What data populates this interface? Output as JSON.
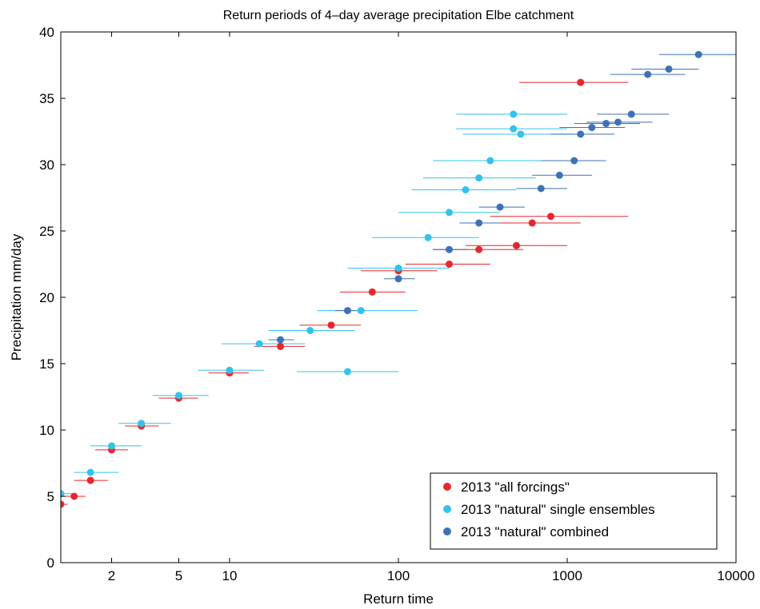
{
  "chart_data": {
    "type": "scatter",
    "title": "Return periods of 4–day average precipitation Elbe catchment",
    "xlabel": "Return time",
    "ylabel": "Precipitation mm/day",
    "xscale": "log",
    "xlim": [
      1,
      10000
    ],
    "ylim": [
      0,
      40
    ],
    "x_ticks": [
      2,
      5,
      10,
      100,
      1000,
      10000
    ],
    "x_tick_labels": [
      "2",
      "5",
      "10",
      "100",
      "1000",
      "10000"
    ],
    "y_ticks": [
      0,
      5,
      10,
      15,
      20,
      25,
      30,
      35,
      40
    ],
    "y_tick_labels": [
      "0",
      "5",
      "10",
      "15",
      "20",
      "25",
      "30",
      "35",
      "40"
    ],
    "grid": false,
    "legend_position": "bottom-right",
    "error_bars": "horizontal",
    "series": [
      {
        "name": "2013 \"all forcings\"",
        "color": "#e8262d",
        "points": [
          {
            "x": 1.0,
            "y": 4.4,
            "lo": 0.9,
            "hi": 1.1
          },
          {
            "x": 1.2,
            "y": 5.0,
            "lo": 1.0,
            "hi": 1.4
          },
          {
            "x": 1.5,
            "y": 6.2,
            "lo": 1.2,
            "hi": 1.9
          },
          {
            "x": 2.0,
            "y": 8.5,
            "lo": 1.6,
            "hi": 2.5
          },
          {
            "x": 3.0,
            "y": 10.3,
            "lo": 2.4,
            "hi": 3.8
          },
          {
            "x": 5.0,
            "y": 12.4,
            "lo": 3.8,
            "hi": 6.5
          },
          {
            "x": 10,
            "y": 14.3,
            "lo": 7.5,
            "hi": 13
          },
          {
            "x": 20,
            "y": 16.3,
            "lo": 14,
            "hi": 28
          },
          {
            "x": 40,
            "y": 17.9,
            "lo": 26,
            "hi": 60
          },
          {
            "x": 70,
            "y": 20.4,
            "lo": 45,
            "hi": 110
          },
          {
            "x": 100,
            "y": 22.0,
            "lo": 60,
            "hi": 170
          },
          {
            "x": 200,
            "y": 22.5,
            "lo": 110,
            "hi": 350
          },
          {
            "x": 300,
            "y": 23.6,
            "lo": 160,
            "hi": 550
          },
          {
            "x": 500,
            "y": 23.9,
            "lo": 250,
            "hi": 1000
          },
          {
            "x": 620,
            "y": 25.6,
            "lo": 300,
            "hi": 1200
          },
          {
            "x": 800,
            "y": 26.1,
            "lo": 350,
            "hi": 2300
          },
          {
            "x": 1200,
            "y": 36.2,
            "lo": 520,
            "hi": 2300
          }
        ]
      },
      {
        "name": "2013 \"natural\" single ensembles",
        "color": "#33c3ea",
        "points": [
          {
            "x": 1.0,
            "y": 5.2,
            "lo": 0.9,
            "hi": 1.2
          },
          {
            "x": 1.5,
            "y": 6.8,
            "lo": 1.2,
            "hi": 2.2
          },
          {
            "x": 2.0,
            "y": 8.8,
            "lo": 1.5,
            "hi": 3.0
          },
          {
            "x": 3.0,
            "y": 10.5,
            "lo": 2.2,
            "hi": 4.5
          },
          {
            "x": 5.0,
            "y": 12.6,
            "lo": 3.5,
            "hi": 7.5
          },
          {
            "x": 10,
            "y": 14.5,
            "lo": 6.5,
            "hi": 16
          },
          {
            "x": 15,
            "y": 16.5,
            "lo": 9,
            "hi": 28
          },
          {
            "x": 30,
            "y": 17.5,
            "lo": 17,
            "hi": 55
          },
          {
            "x": 50,
            "y": 14.4,
            "lo": 25,
            "hi": 100
          },
          {
            "x": 60,
            "y": 19.0,
            "lo": 33,
            "hi": 130
          },
          {
            "x": 100,
            "y": 22.2,
            "lo": 50,
            "hi": 200
          },
          {
            "x": 150,
            "y": 24.5,
            "lo": 70,
            "hi": 300
          },
          {
            "x": 200,
            "y": 26.4,
            "lo": 100,
            "hi": 400
          },
          {
            "x": 250,
            "y": 28.1,
            "lo": 120,
            "hi": 500
          },
          {
            "x": 300,
            "y": 29.0,
            "lo": 140,
            "hi": 650
          },
          {
            "x": 350,
            "y": 30.3,
            "lo": 160,
            "hi": 800
          },
          {
            "x": 480,
            "y": 32.7,
            "lo": 220,
            "hi": 1000
          },
          {
            "x": 480,
            "y": 33.8,
            "lo": 220,
            "hi": 1000
          },
          {
            "x": 530,
            "y": 32.3,
            "lo": 240,
            "hi": 1100
          }
        ]
      },
      {
        "name": "2013 \"natural\" combined",
        "color": "#3d72b8",
        "points": [
          {
            "x": 20,
            "y": 16.8,
            "lo": 17,
            "hi": 24
          },
          {
            "x": 50,
            "y": 19.0,
            "lo": 42,
            "hi": 60
          },
          {
            "x": 100,
            "y": 21.4,
            "lo": 82,
            "hi": 125
          },
          {
            "x": 200,
            "y": 23.6,
            "lo": 160,
            "hi": 260
          },
          {
            "x": 300,
            "y": 25.6,
            "lo": 230,
            "hi": 400
          },
          {
            "x": 400,
            "y": 26.8,
            "lo": 300,
            "hi": 560
          },
          {
            "x": 700,
            "y": 28.2,
            "lo": 500,
            "hi": 1000
          },
          {
            "x": 900,
            "y": 29.2,
            "lo": 620,
            "hi": 1400
          },
          {
            "x": 1100,
            "y": 30.3,
            "lo": 700,
            "hi": 1700
          },
          {
            "x": 1200,
            "y": 32.3,
            "lo": 800,
            "hi": 1900
          },
          {
            "x": 1400,
            "y": 32.8,
            "lo": 900,
            "hi": 2200
          },
          {
            "x": 1700,
            "y": 33.1,
            "lo": 1100,
            "hi": 2700
          },
          {
            "x": 2000,
            "y": 33.2,
            "lo": 1300,
            "hi": 3200
          },
          {
            "x": 2400,
            "y": 33.8,
            "lo": 1500,
            "hi": 4000
          },
          {
            "x": 3000,
            "y": 36.8,
            "lo": 1800,
            "hi": 5000
          },
          {
            "x": 4000,
            "y": 37.2,
            "lo": 2400,
            "hi": 6000
          },
          {
            "x": 6000,
            "y": 38.3,
            "lo": 3500,
            "hi": 10000
          }
        ]
      }
    ]
  }
}
